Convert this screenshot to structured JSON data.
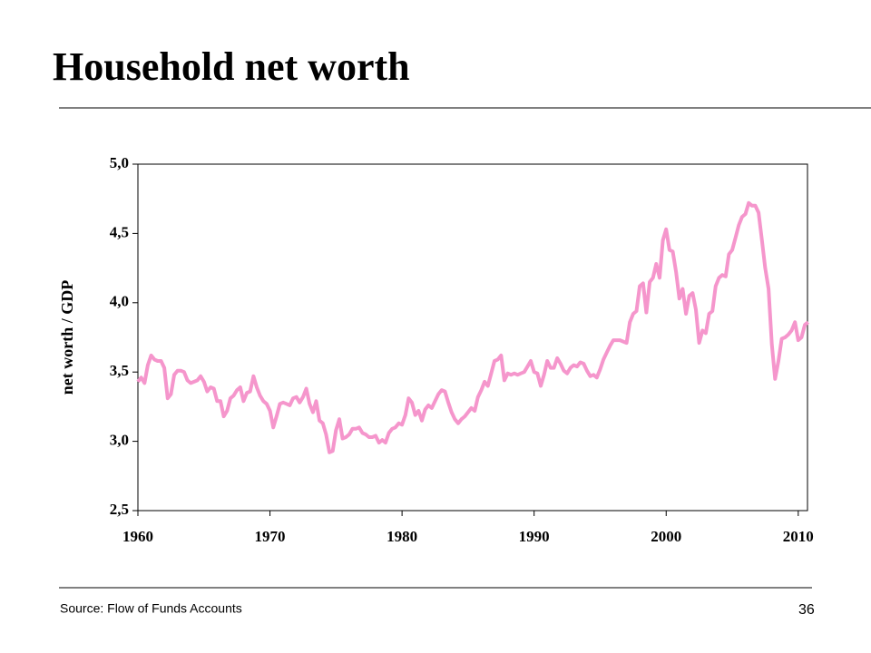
{
  "slide_title": "Household net worth",
  "footer": {
    "source": "Source:  Flow of Funds Accounts",
    "page_number": "36"
  },
  "chart_data": {
    "type": "line",
    "ylabel": "net worth / GDP",
    "xlim": [
      1960,
      2010.7
    ],
    "xticks": [
      1960,
      1970,
      1980,
      1990,
      2000,
      2010
    ],
    "ylim": [
      2.5,
      5.0
    ],
    "yticks": [
      {
        "value": 2.5,
        "label": "2,5"
      },
      {
        "value": 3.0,
        "label": "3,0"
      },
      {
        "value": 3.5,
        "label": "3,5"
      },
      {
        "value": 4.0,
        "label": "4,0"
      },
      {
        "value": 4.5,
        "label": "4,5"
      },
      {
        "value": 5.0,
        "label": "5,0"
      }
    ],
    "x": [
      1960,
      1960.25,
      1960.5,
      1960.75,
      1961,
      1961.25,
      1961.5,
      1961.75,
      1962,
      1962.25,
      1962.5,
      1962.75,
      1963,
      1963.25,
      1963.5,
      1963.75,
      1964,
      1964.25,
      1964.5,
      1964.75,
      1965,
      1965.25,
      1965.5,
      1965.75,
      1966,
      1966.25,
      1966.5,
      1966.75,
      1967,
      1967.25,
      1967.5,
      1967.75,
      1968,
      1968.25,
      1968.5,
      1968.75,
      1969,
      1969.25,
      1969.5,
      1969.75,
      1970,
      1970.25,
      1970.5,
      1970.75,
      1971,
      1971.25,
      1971.5,
      1971.75,
      1972,
      1972.25,
      1972.5,
      1972.75,
      1973,
      1973.25,
      1973.5,
      1973.75,
      1974,
      1974.25,
      1974.5,
      1974.75,
      1975,
      1975.25,
      1975.5,
      1975.75,
      1976,
      1976.25,
      1976.5,
      1976.75,
      1977,
      1977.25,
      1977.5,
      1977.75,
      1978,
      1978.25,
      1978.5,
      1978.75,
      1979,
      1979.25,
      1979.5,
      1979.75,
      1980,
      1980.25,
      1980.5,
      1980.75,
      1981,
      1981.25,
      1981.5,
      1981.75,
      1982,
      1982.25,
      1982.5,
      1982.75,
      1983,
      1983.25,
      1983.5,
      1983.75,
      1984,
      1984.25,
      1984.5,
      1984.75,
      1985,
      1985.25,
      1985.5,
      1985.75,
      1986,
      1986.25,
      1986.5,
      1986.75,
      1987,
      1987.25,
      1987.5,
      1987.75,
      1988,
      1988.25,
      1988.5,
      1988.75,
      1989,
      1989.25,
      1989.5,
      1989.75,
      1990,
      1990.25,
      1990.5,
      1990.75,
      1991,
      1991.25,
      1991.5,
      1991.75,
      1992,
      1992.25,
      1992.5,
      1992.75,
      1993,
      1993.25,
      1993.5,
      1993.75,
      1994,
      1994.25,
      1994.5,
      1994.75,
      1995,
      1995.25,
      1995.5,
      1995.75,
      1996,
      1996.25,
      1996.5,
      1996.75,
      1997,
      1997.25,
      1997.5,
      1997.75,
      1998,
      1998.25,
      1998.5,
      1998.75,
      1999,
      1999.25,
      1999.5,
      1999.75,
      2000,
      2000.25,
      2000.5,
      2000.75,
      2001,
      2001.25,
      2001.5,
      2001.75,
      2002,
      2002.25,
      2002.5,
      2002.75,
      2003,
      2003.25,
      2003.5,
      2003.75,
      2004,
      2004.25,
      2004.5,
      2004.75,
      2005,
      2005.25,
      2005.5,
      2005.75,
      2006,
      2006.25,
      2006.5,
      2006.75,
      2007,
      2007.25,
      2007.5,
      2007.75,
      2008,
      2008.25,
      2008.5,
      2008.75,
      2009,
      2009.25,
      2009.5,
      2009.75,
      2010,
      2010.25,
      2010.5,
      2010.75
    ],
    "series": [
      {
        "name": "net worth / GDP",
        "color": "#f596cc",
        "values": [
          3.43,
          3.46,
          3.42,
          3.55,
          3.62,
          3.59,
          3.58,
          3.58,
          3.53,
          3.31,
          3.34,
          3.48,
          3.51,
          3.51,
          3.5,
          3.44,
          3.42,
          3.43,
          3.44,
          3.47,
          3.43,
          3.36,
          3.39,
          3.38,
          3.29,
          3.29,
          3.18,
          3.22,
          3.31,
          3.33,
          3.37,
          3.39,
          3.29,
          3.35,
          3.36,
          3.47,
          3.39,
          3.33,
          3.29,
          3.27,
          3.22,
          3.1,
          3.18,
          3.27,
          3.28,
          3.27,
          3.26,
          3.31,
          3.32,
          3.28,
          3.32,
          3.38,
          3.27,
          3.21,
          3.29,
          3.15,
          3.13,
          3.05,
          2.92,
          2.93,
          3.08,
          3.16,
          3.02,
          3.03,
          3.05,
          3.09,
          3.09,
          3.1,
          3.06,
          3.05,
          3.03,
          3.03,
          3.04,
          2.99,
          3.01,
          2.99,
          3.06,
          3.09,
          3.1,
          3.13,
          3.12,
          3.19,
          3.31,
          3.28,
          3.19,
          3.22,
          3.15,
          3.23,
          3.26,
          3.24,
          3.29,
          3.34,
          3.37,
          3.36,
          3.28,
          3.21,
          3.16,
          3.13,
          3.16,
          3.18,
          3.21,
          3.24,
          3.22,
          3.32,
          3.37,
          3.43,
          3.4,
          3.49,
          3.58,
          3.59,
          3.62,
          3.44,
          3.49,
          3.48,
          3.49,
          3.48,
          3.49,
          3.5,
          3.54,
          3.58,
          3.5,
          3.49,
          3.4,
          3.48,
          3.58,
          3.53,
          3.53,
          3.6,
          3.56,
          3.51,
          3.49,
          3.53,
          3.55,
          3.54,
          3.57,
          3.56,
          3.51,
          3.47,
          3.48,
          3.46,
          3.52,
          3.59,
          3.64,
          3.69,
          3.73,
          3.73,
          3.73,
          3.72,
          3.71,
          3.86,
          3.92,
          3.94,
          4.12,
          4.14,
          3.93,
          4.15,
          4.18,
          4.28,
          4.18,
          4.45,
          4.53,
          4.38,
          4.37,
          4.22,
          4.03,
          4.1,
          3.92,
          4.05,
          4.07,
          3.95,
          3.71,
          3.8,
          3.78,
          3.92,
          3.94,
          4.12,
          4.18,
          4.2,
          4.19,
          4.35,
          4.38,
          4.47,
          4.56,
          4.62,
          4.64,
          4.72,
          4.7,
          4.7,
          4.65,
          4.45,
          4.25,
          4.1,
          3.7,
          3.45,
          3.58,
          3.74,
          3.75,
          3.77,
          3.8,
          3.86,
          3.73,
          3.75,
          3.84,
          3.86
        ]
      }
    ]
  }
}
